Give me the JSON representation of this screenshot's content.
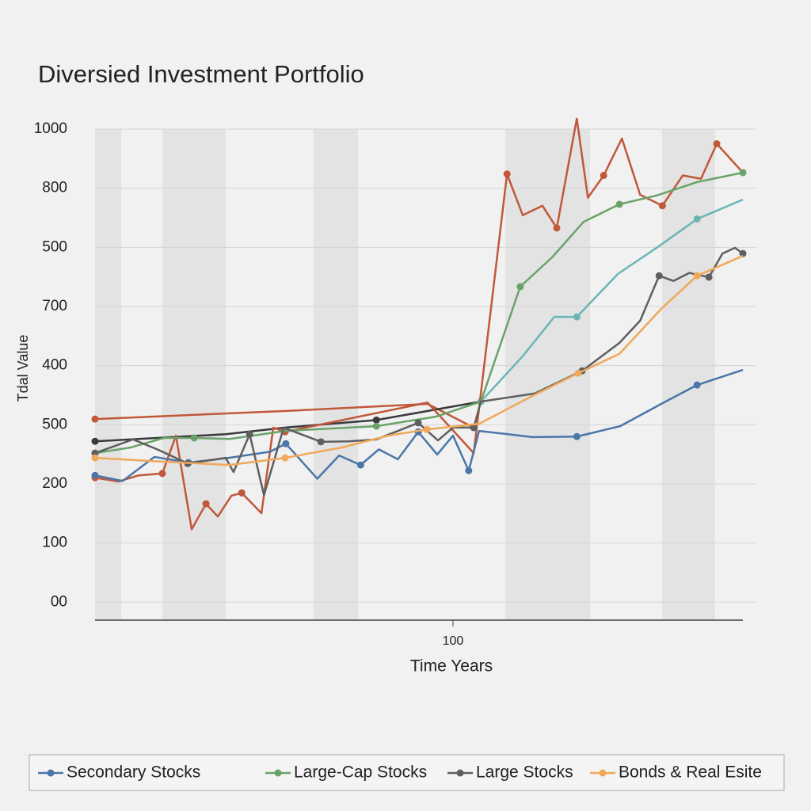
{
  "chart_data": {
    "type": "line",
    "title": "Diversied Investment Portfolio",
    "x_label": "Time Years",
    "y_label": "Tdal Value",
    "xlim": [
      0,
      181
    ],
    "xticks": [
      100
    ],
    "ylim": [
      -38,
      1000
    ],
    "yticks": [
      {
        "value": 0,
        "label": "00"
      },
      {
        "value": 125,
        "label": "100"
      },
      {
        "value": 250,
        "label": "200"
      },
      {
        "value": 375,
        "label": "500"
      },
      {
        "value": 500,
        "label": "400"
      },
      {
        "value": 625,
        "label": "700"
      },
      {
        "value": 750,
        "label": "500"
      },
      {
        "value": 875,
        "label": "800"
      },
      1000
    ],
    "grid": true,
    "legend": "bottom",
    "series": [
      {
        "color": "#c0583a",
        "x": [
          0,
          52.7,
          92.9,
          105.8
        ],
        "values": [
          387,
          404,
          419,
          369
        ]
      },
      {
        "color": "#3a3a3a",
        "x": [
          0,
          36.5,
          53.1,
          78.6,
          107.8
        ],
        "values": [
          340,
          355,
          369,
          385,
          424
        ]
      },
      {
        "color": "#6bb5b5",
        "x": [
          107.8,
          119.5,
          128.3,
          134.6,
          146.1,
          157.1,
          168.2,
          181
        ],
        "values": [
          424,
          520,
          603,
          603,
          694,
          750,
          810,
          851
        ]
      },
      {
        "color": "#c0583a",
        "x": [
          0,
          6.6,
          12.2,
          18.8,
          22.6,
          27.0,
          31.0,
          34.3,
          38.1,
          41.0,
          46.5,
          49.8,
          53.1,
          92.9,
          105.8,
          115.1,
          119.5,
          125.0,
          129.0,
          134.6,
          137.7,
          142.1,
          147.2,
          152.3,
          158.5,
          164.2,
          169.3,
          173.7,
          181
        ],
        "values": [
          263,
          255,
          268,
          272,
          352,
          154,
          208,
          181,
          225,
          231,
          188,
          369,
          360,
          422,
          315,
          905,
          818,
          838,
          791,
          1022,
          855,
          902,
          980,
          861,
          838,
          902,
          895,
          969,
          908
        ]
      },
      {
        "name": "Secondary Stocks",
        "color": "#4a76a8",
        "x": [
          0,
          7.7,
          16.6,
          26.1,
          37.4,
          48.9,
          53.3,
          62.1,
          68.2,
          74.2,
          79.3,
          84.6,
          90.3,
          95.6,
          100,
          104.4,
          107.3,
          122.2,
          134.6,
          146.7,
          158.9,
          168.2,
          181
        ],
        "values": [
          268,
          256,
          307,
          295,
          305,
          318,
          335,
          261,
          310,
          290,
          323,
          302,
          360,
          312,
          352,
          278,
          362,
          349,
          350,
          372,
          422,
          459,
          491
        ]
      },
      {
        "name": "Large-Cap Stocks",
        "color": "#6aa36a",
        "x": [
          0,
          10,
          19.2,
          27.7,
          37.6,
          53.1,
          78.6,
          95.2,
          107.8,
          118.8,
          127.7,
          136.5,
          146.5,
          157.1,
          168.2,
          181
        ],
        "values": [
          315,
          327,
          347,
          347,
          345,
          362,
          372,
          392,
          424,
          667,
          729,
          804,
          841,
          860,
          888,
          908
        ]
      },
      {
        "name": "Large Stocks",
        "color": "#5f5f5f",
        "x": [
          0,
          10.6,
          17.7,
          25.9,
          36.5,
          38.7,
          43.2,
          47.2,
          52.7,
          63.1,
          70.8,
          78.6,
          90.3,
          95.8,
          100,
          105.8,
          107.8,
          122.8,
          136.1,
          146.5,
          152.3,
          157.6,
          161.6,
          166.0,
          171.5,
          175.3,
          178.8,
          181
        ],
        "values": [
          315,
          344,
          322,
          293,
          305,
          275,
          355,
          226,
          369,
          339,
          340,
          344,
          379,
          342,
          369,
          369,
          424,
          441,
          489,
          548,
          595,
          690,
          679,
          696,
          687,
          737,
          749,
          737
        ]
      },
      {
        "name": "Bonds & Real Esite",
        "color": "#f0a85a",
        "x": [
          0,
          16.2,
          37.6,
          53.1,
          69.0,
          81.9,
          92.7,
          107.3,
          122.2,
          135.0,
          146.5,
          158.2,
          168.2,
          181
        ],
        "values": [
          305,
          298,
          290,
          305,
          327,
          352,
          365,
          377,
          436,
          484,
          525,
          620,
          690,
          732
        ]
      }
    ]
  }
}
